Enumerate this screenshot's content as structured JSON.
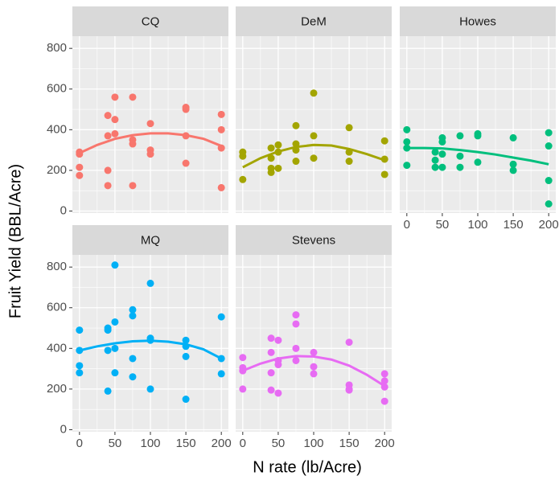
{
  "chart_data": {
    "type": "scatter",
    "x_label": "N rate (lb/Acre)",
    "y_label": "Fruit Yield (BBL/Acre)",
    "xlim": [
      -10,
      210
    ],
    "ylim": [
      -10,
      860
    ],
    "xticks": [
      0,
      50,
      100,
      150,
      200
    ],
    "yticks": [
      0,
      200,
      400,
      600,
      800
    ],
    "x_minor": [
      25,
      75,
      125,
      175
    ],
    "y_minor": [
      100,
      300,
      500,
      700
    ],
    "grid": true,
    "fit_x": [
      0,
      25,
      50,
      75,
      100,
      125,
      150,
      175,
      200
    ],
    "panels": [
      {
        "title": "CQ",
        "color": "#F8766D",
        "x": [
          0,
          0,
          0,
          0,
          40,
          40,
          40,
          40,
          50,
          50,
          50,
          75,
          75,
          75,
          75,
          100,
          100,
          100,
          150,
          150,
          150,
          150,
          200,
          200,
          200,
          200
        ],
        "values": [
          290,
          280,
          215,
          175,
          470,
          370,
          200,
          125,
          560,
          450,
          380,
          560,
          350,
          330,
          125,
          430,
          300,
          280,
          510,
          500,
          370,
          235,
          475,
          400,
          310,
          115
        ],
        "fit": [
          285,
          325,
          355,
          373,
          382,
          382,
          373,
          355,
          320
        ]
      },
      {
        "title": "DeM",
        "color": "#A3A500",
        "x": [
          0,
          0,
          0,
          40,
          40,
          40,
          40,
          50,
          50,
          50,
          75,
          75,
          75,
          75,
          100,
          100,
          100,
          150,
          150,
          150,
          200,
          200,
          200
        ],
        "values": [
          290,
          270,
          155,
          310,
          260,
          210,
          190,
          325,
          290,
          210,
          420,
          330,
          300,
          245,
          580,
          370,
          260,
          410,
          290,
          245,
          345,
          255,
          180
        ],
        "fit": [
          215,
          260,
          293,
          315,
          325,
          322,
          305,
          280,
          250
        ]
      },
      {
        "title": "Howes",
        "color": "#00BF7D",
        "x": [
          0,
          0,
          0,
          0,
          40,
          40,
          40,
          50,
          50,
          50,
          50,
          75,
          75,
          75,
          100,
          100,
          100,
          150,
          150,
          150,
          200,
          200,
          200,
          200
        ],
        "values": [
          400,
          340,
          310,
          225,
          290,
          250,
          215,
          360,
          340,
          280,
          215,
          370,
          270,
          215,
          380,
          370,
          240,
          360,
          230,
          200,
          385,
          320,
          150,
          35
        ],
        "fit": [
          310,
          310,
          308,
          300,
          290,
          278,
          263,
          248,
          230
        ]
      },
      {
        "title": "MQ",
        "color": "#00B0F6",
        "x": [
          0,
          0,
          0,
          0,
          40,
          40,
          40,
          40,
          50,
          50,
          50,
          50,
          75,
          75,
          75,
          75,
          100,
          100,
          100,
          100,
          150,
          150,
          150,
          150,
          200,
          200,
          200
        ],
        "values": [
          490,
          390,
          315,
          280,
          500,
          490,
          390,
          190,
          810,
          530,
          400,
          280,
          590,
          560,
          350,
          260,
          720,
          450,
          440,
          200,
          440,
          410,
          360,
          150,
          555,
          350,
          275
        ],
        "fit": [
          390,
          410,
          425,
          435,
          438,
          433,
          420,
          395,
          350
        ]
      },
      {
        "title": "Stevens",
        "color": "#E76BF3",
        "x": [
          0,
          0,
          0,
          0,
          40,
          40,
          40,
          40,
          50,
          50,
          50,
          50,
          75,
          75,
          75,
          75,
          100,
          100,
          100,
          150,
          150,
          150,
          150,
          200,
          200,
          200,
          200
        ],
        "values": [
          355,
          305,
          290,
          200,
          450,
          380,
          280,
          195,
          440,
          340,
          320,
          180,
          565,
          520,
          400,
          340,
          380,
          310,
          275,
          430,
          220,
          200,
          195,
          275,
          240,
          210,
          140
        ],
        "fit": [
          290,
          325,
          350,
          362,
          360,
          345,
          315,
          270,
          215
        ]
      }
    ]
  }
}
